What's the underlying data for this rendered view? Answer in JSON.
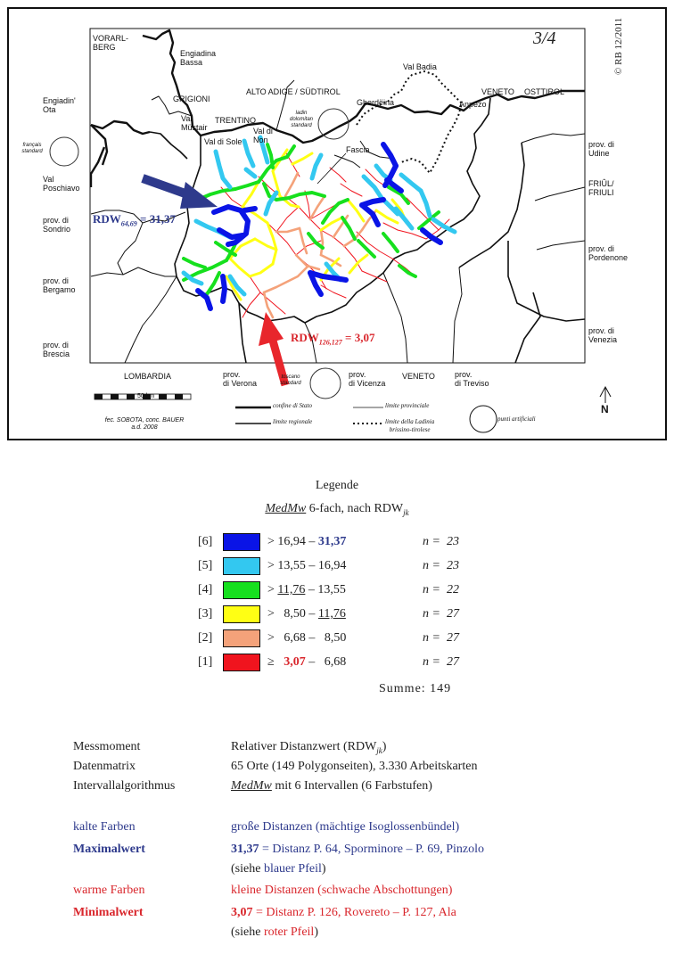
{
  "map": {
    "version": "3/4",
    "copyright": "© RB 12/2011",
    "regions": {
      "vorarlberg": "VORARL-\nBERG",
      "engiadina_bassa": "Engiadina\nBassa",
      "grigioni": "GRIGIONI",
      "alto_adige": "ALTO ADIGE / SÜDTIROL",
      "val_badia": "Val Badia",
      "veneto_top": "VENETO",
      "osttirol": "OSTTIROL",
      "engiadin_ota": "Engiadin'\nOta",
      "val_mustair": "Val\nMüstair",
      "trentino": "TRENTINO",
      "gherdeina": "Gherdëina",
      "anpezo": "Anpezo",
      "val_di_sole": "Val di Sole",
      "val_di_non": "Val di\nNon",
      "fascia": "Fascia",
      "udine": "prov. di\nUdine",
      "val_poschiavo": "Val\nPoschiavo",
      "friul": "FRIÛL/\nFRIULI",
      "sondrio": "prov. di\nSondrio",
      "pordenone": "prov. di\nPordenone",
      "bergamo": "prov. di\nBergamo",
      "venezia": "prov. di\nVenezia",
      "brescia": "prov. di\nBrescia",
      "lombardia": "LOMBARDIA",
      "verona": "prov.\ndi Verona",
      "vicenza": "prov.\ndi Vicenza",
      "veneto_bottom": "VENETO",
      "treviso": "prov.\ndi Treviso"
    },
    "standards": {
      "ladin": "ladin\ndolomitan\nstandard",
      "francais": "français\nstandard",
      "toscano": "toscano\nstandard"
    },
    "labels": {
      "max_prefix": "RDW",
      "max_sub": "64,69",
      "max_value": "= 31,37",
      "min_prefix": "RDW",
      "min_sub": "126,127",
      "min_value": "= 3,07"
    },
    "scale": "50 km",
    "credit": "fec. SOBOTA, conc. BAUER\na.d. 2008",
    "map_legend": {
      "state": "confine di Stato",
      "province": "limite provinciale",
      "region": "limite regionale",
      "ladinia": "limite della Ladinia\nbrissino-tirolese",
      "artificial": "punti artificiali"
    },
    "north": "N"
  },
  "legend": {
    "title": "Legende",
    "subtitle_part1": "MedMw",
    "subtitle_part2": " 6-fach, nach RDW",
    "subtitle_sub": "jk",
    "rows": [
      {
        "cls": "[6]",
        "color": "#0a14e6",
        "pre": "> 16,94 – ",
        "hi": "31,37",
        "post": "",
        "count": "n =  23"
      },
      {
        "cls": "[5]",
        "color": "#33c8f0",
        "pre": "> 13,55 – 16,94",
        "hi": "",
        "post": "",
        "count": "n =  23"
      },
      {
        "cls": "[4]",
        "color": "#16e01e",
        "pre": "> ",
        "hi": "11,76",
        "post": " – 13,55",
        "count": "n =  22"
      },
      {
        "cls": "[3]",
        "color": "#ffff14",
        "pre": ">   8,50 – ",
        "hi": "11,76",
        "post": "",
        "count": "n =  27"
      },
      {
        "cls": "[2]",
        "color": "#f4a27a",
        "pre": ">   6,68 –   8,50",
        "hi": "",
        "post": "",
        "count": "n =  27"
      },
      {
        "cls": "[1]",
        "color": "#f0141e",
        "pre": "≥   ",
        "hi": "3,07",
        "post": " –   6,68",
        "count": "n =  27"
      }
    ],
    "sum": "Summe:  149"
  },
  "info": {
    "messmoment_label": "Messmoment",
    "messmoment_value": "Relativer Distanzwert (RDW",
    "messmoment_sub": "jk",
    "messmoment_end": ")",
    "datenmatrix_label": "Datenmatrix",
    "datenmatrix_value": "65 Orte (149 Polygonseiten), 3.330 Arbeitskarten",
    "algo_label": "Intervallalgorithmus",
    "algo_value_it": "MedMw",
    "algo_value": " mit 6 Intervallen (6 Farbstufen)",
    "kalt_label": "kalte Farben",
    "kalt_value": "große Distanzen (mächtige Isoglossenbündel)",
    "max_label": "Maximalwert",
    "max_num": "31,37",
    "max_text": " = Distanz P. 64, Sporminore – P. 69, Pinzolo",
    "max_note_pre": "(siehe ",
    "max_note_col": "blauer Pfeil",
    "max_note_post": ")",
    "warm_label": "warme Farben",
    "warm_value": "kleine Distanzen (schwache Abschottungen)",
    "min_label": "Minimalwert",
    "min_num": "3,07",
    "min_text": " = Distanz P. 126, Rovereto – P. 127, Ala",
    "min_note_pre": "(siehe ",
    "min_note_col": "roter Pfeil",
    "min_note_post": ")"
  },
  "colors": {
    "c6": "#0a14e6",
    "c5": "#33c8f0",
    "c4": "#16e01e",
    "c3": "#ffff14",
    "c2": "#f4a27a",
    "c1": "#f0141e",
    "blue_text": "#2e3a8c",
    "red_text": "#d9262c",
    "arrow_blue": "#2e3a8c",
    "arrow_red": "#e8262c"
  }
}
